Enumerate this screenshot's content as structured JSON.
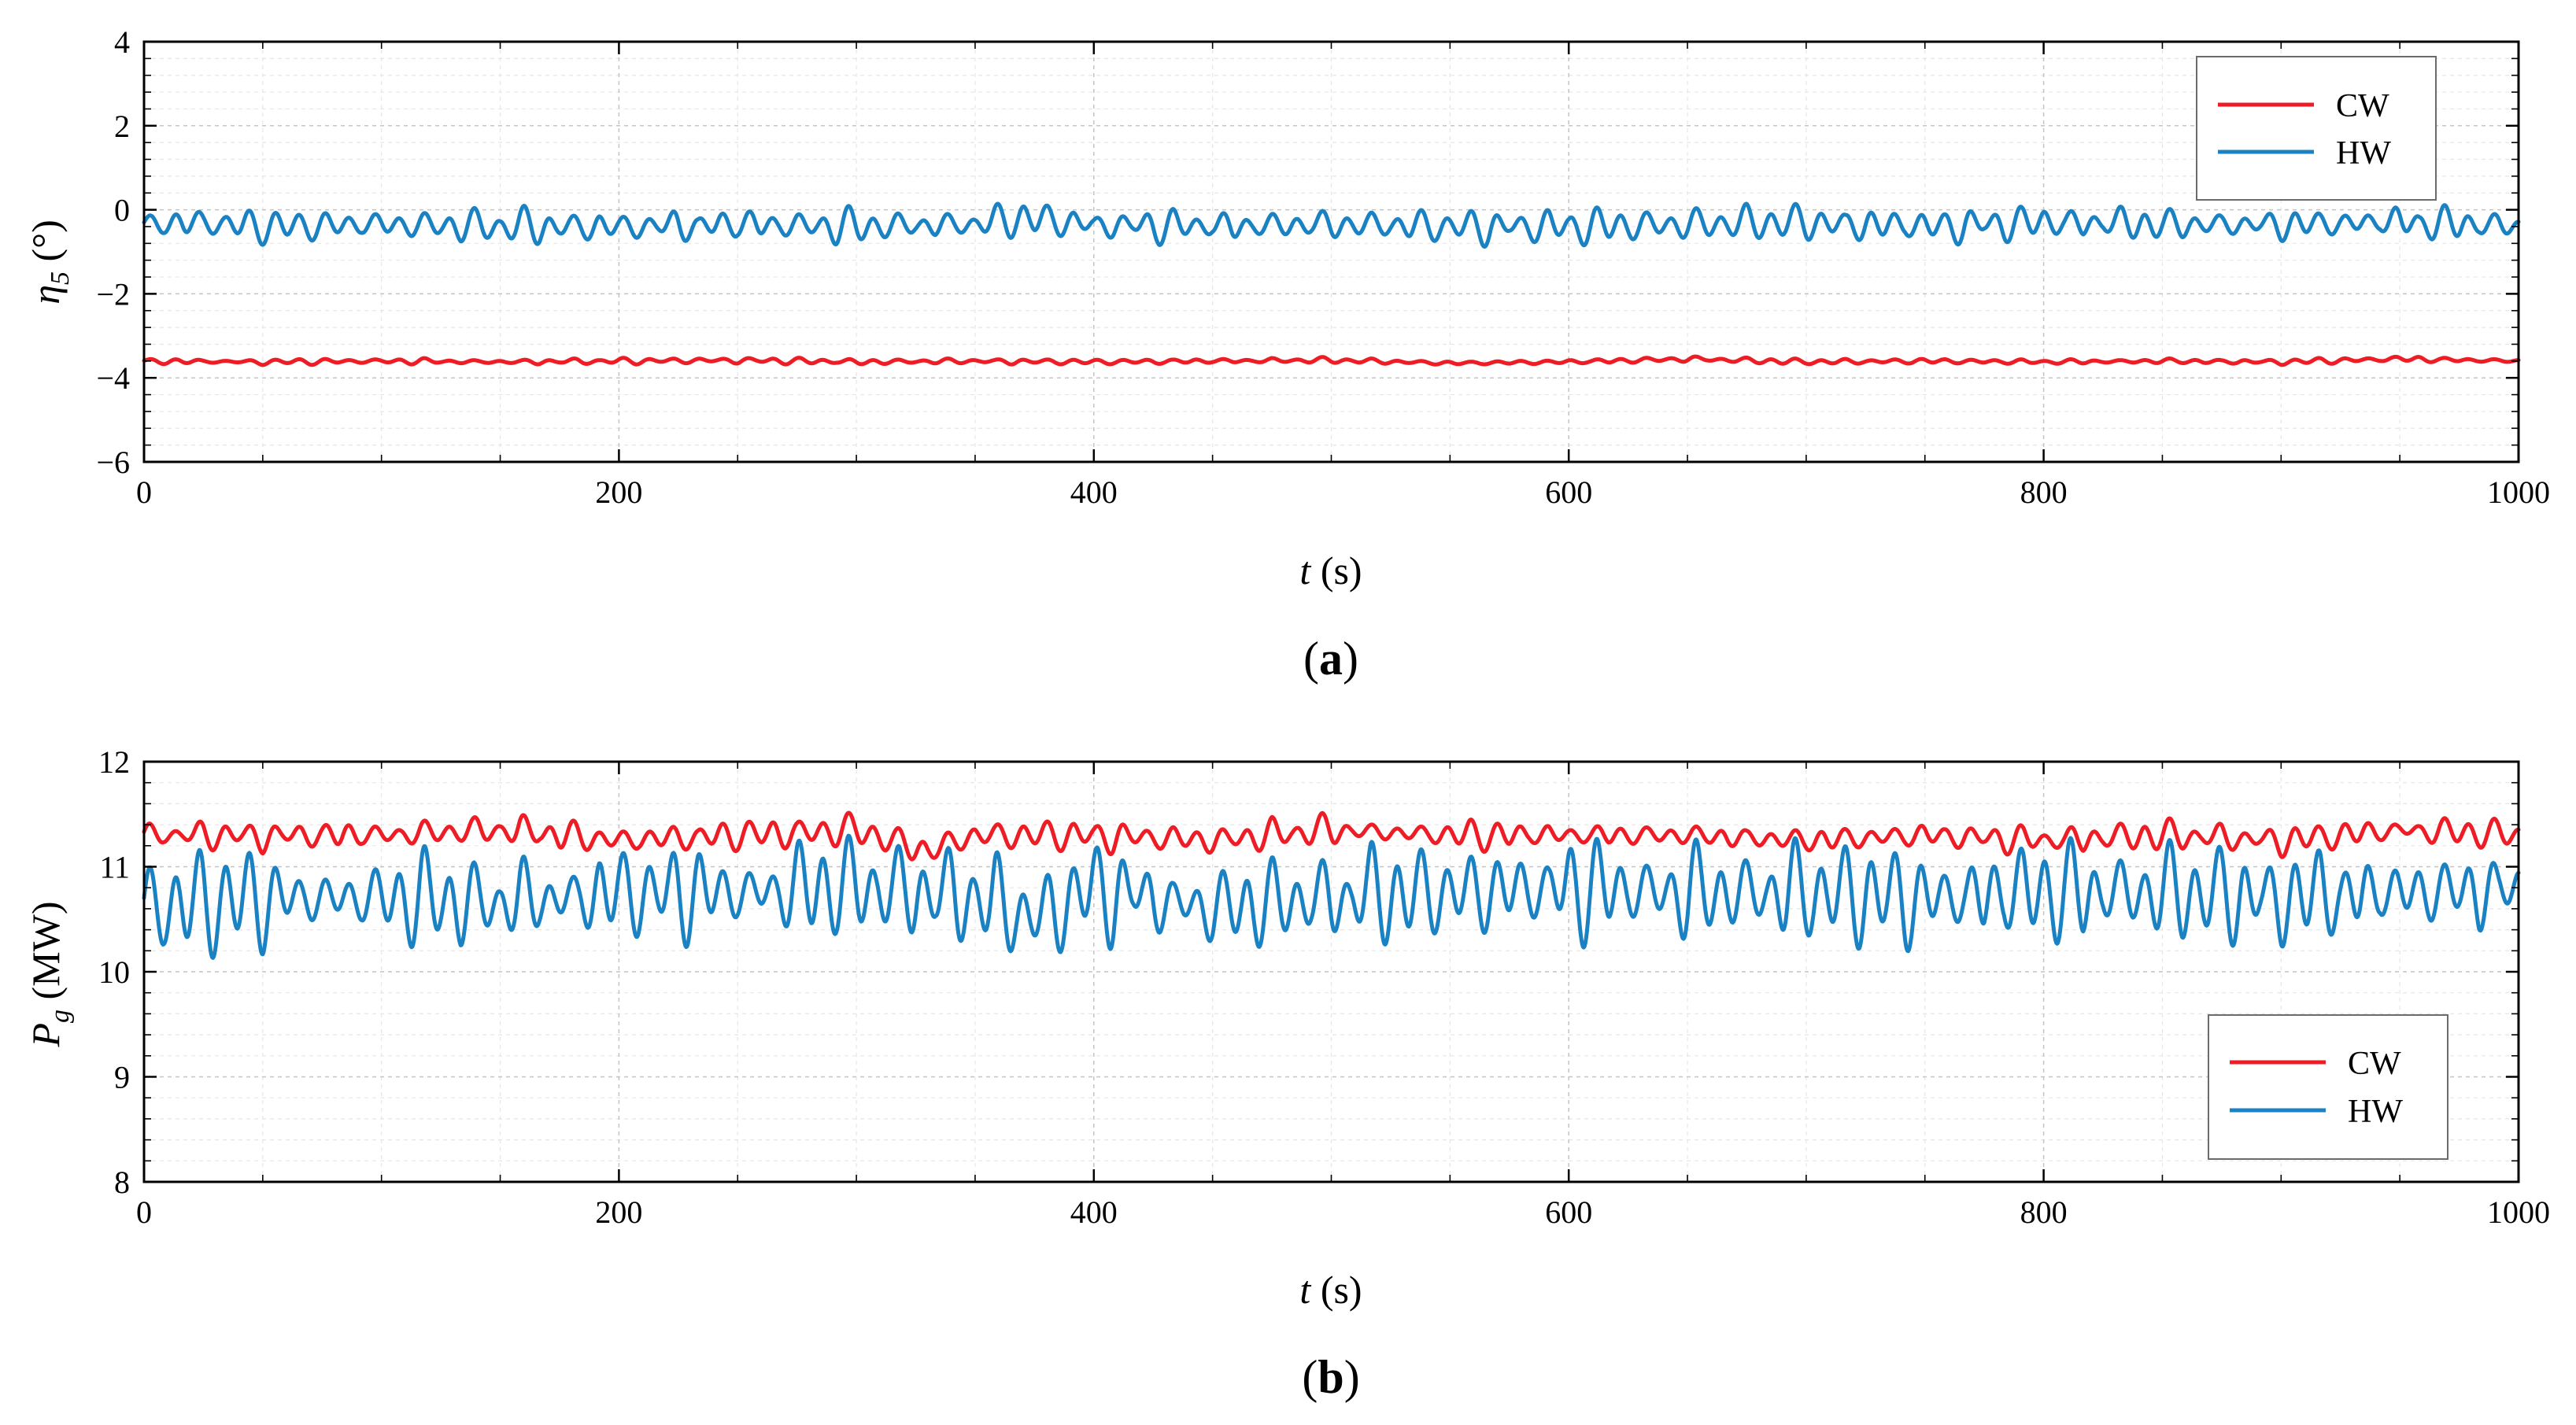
{
  "chart_data": [
    {
      "type": "line",
      "panel_label": "a",
      "ylabel_symbol": "η",
      "ylabel_subscript": "5",
      "ylabel_unit": " (°)",
      "xlabel_symbol": "t",
      "xlabel_unit": " (s)",
      "xlim": [
        0,
        1000
      ],
      "ylim": [
        -6,
        4
      ],
      "xticks": [
        0,
        200,
        400,
        600,
        800,
        1000
      ],
      "yticks": [
        4,
        2,
        0,
        -2,
        -4,
        -6
      ],
      "ytick_labels": [
        "4",
        "2",
        "0",
        "−2",
        "−4",
        "−6"
      ],
      "grid": true,
      "legend_position": "top-right",
      "series": [
        {
          "name": "CW",
          "color": "#ee1c25",
          "mean": -3.6,
          "x": [
            0,
            50,
            100,
            150,
            200,
            250,
            300,
            350,
            400,
            450,
            500,
            550,
            600,
            650,
            700,
            750,
            800,
            850,
            900,
            950,
            1000
          ],
          "y": [
            -3.6,
            -3.62,
            -3.6,
            -3.62,
            -3.6,
            -3.58,
            -3.62,
            -3.6,
            -3.62,
            -3.6,
            -3.58,
            -3.65,
            -3.62,
            -3.55,
            -3.62,
            -3.6,
            -3.62,
            -3.6,
            -3.62,
            -3.55,
            -3.6
          ],
          "osc_amplitude": 0.06,
          "osc_period": 10.5
        },
        {
          "name": "HW",
          "color": "#1a82c2",
          "x": [
            0,
            20,
            50,
            100,
            150,
            200,
            250,
            300,
            350,
            370,
            400,
            450,
            500,
            550,
            600,
            650,
            700,
            750,
            800,
            850,
            900,
            950,
            1000
          ],
          "y": [
            -0.35,
            -0.3,
            -0.4,
            -0.35,
            -0.4,
            -0.4,
            -0.35,
            -0.4,
            -0.35,
            -0.2,
            -0.35,
            -0.4,
            -0.35,
            -0.4,
            -0.4,
            -0.35,
            -0.3,
            -0.4,
            -0.3,
            -0.35,
            -0.35,
            -0.3,
            -0.4
          ],
          "osc_amplitude": 0.35,
          "osc_period": 10.5
        }
      ]
    },
    {
      "type": "line",
      "panel_label": "b",
      "ylabel_symbol": "P",
      "ylabel_subscript": "g",
      "ylabel_unit": " (MW)",
      "xlabel_symbol": "t",
      "xlabel_unit": " (s)",
      "xlim": [
        0,
        1000
      ],
      "ylim": [
        8,
        12
      ],
      "xticks": [
        0,
        200,
        400,
        600,
        800,
        1000
      ],
      "yticks": [
        12,
        11,
        10,
        9,
        8
      ],
      "ytick_labels": [
        "12",
        "11",
        "10",
        "9",
        "8"
      ],
      "grid": true,
      "legend_position": "lower-right",
      "series": [
        {
          "name": "CW",
          "color": "#ee1c25",
          "x": [
            0,
            50,
            100,
            150,
            200,
            250,
            300,
            330,
            350,
            400,
            450,
            500,
            550,
            600,
            650,
            700,
            750,
            800,
            850,
            900,
            950,
            1000
          ],
          "y": [
            11.3,
            11.3,
            11.3,
            11.35,
            11.25,
            11.3,
            11.35,
            11.15,
            11.3,
            11.3,
            11.25,
            11.35,
            11.3,
            11.3,
            11.3,
            11.25,
            11.3,
            11.25,
            11.3,
            11.25,
            11.35,
            11.3
          ],
          "osc_amplitude": 0.13,
          "osc_period": 10.5
        },
        {
          "name": "HW",
          "color": "#1a82c2",
          "x": [
            0,
            50,
            100,
            150,
            200,
            250,
            300,
            350,
            375,
            400,
            450,
            500,
            550,
            600,
            650,
            700,
            750,
            800,
            850,
            900,
            950,
            1000
          ],
          "y": [
            10.6,
            10.7,
            10.7,
            10.65,
            10.75,
            10.75,
            10.8,
            10.7,
            10.5,
            10.8,
            10.6,
            10.7,
            10.75,
            10.8,
            10.75,
            10.75,
            10.7,
            10.75,
            10.75,
            10.7,
            10.75,
            10.8
          ],
          "osc_amplitude": 0.4,
          "osc_period": 10.5
        }
      ]
    }
  ]
}
